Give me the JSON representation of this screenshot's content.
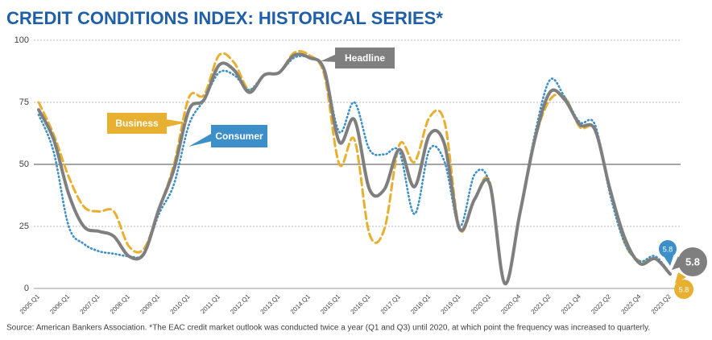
{
  "chart_data": {
    "type": "line",
    "title": "CREDIT CONDITIONS INDEX: HISTORICAL SERIES*",
    "note": "Source: American Bankers Association. *The EAC credit market outlook was conducted twice a year (Q1 and Q3) until 2020, at which point the frequency was increased to quarterly.",
    "categories": [
      "2005.Q1",
      null,
      "2006.Q1",
      null,
      "2007.Q1",
      null,
      "2008.Q1",
      null,
      "2009.Q1",
      null,
      "2010.Q1",
      null,
      "2011.Q1",
      null,
      "2012.Q1",
      null,
      "2013.Q1",
      null,
      "2014.Q1",
      null,
      "2015.Q1",
      null,
      "2016.Q1",
      null,
      "2017.Q1",
      null,
      "2018.Q1",
      null,
      "2019.Q1",
      null,
      "2020.Q1",
      null,
      "2020.Q4",
      null,
      "2021.Q2",
      null,
      "2021.Q4",
      null,
      "2022.Q2",
      null,
      "2022.Q4",
      null,
      "2023.Q2"
    ],
    "series": [
      {
        "name": "Headline",
        "color": "#7f7f7f",
        "style": "solid",
        "values": [
          72,
          60,
          38,
          25,
          23,
          21,
          13,
          14,
          32,
          48,
          72,
          76,
          90,
          88,
          79,
          86,
          87,
          94,
          93,
          88,
          59,
          68,
          40,
          40,
          56,
          41,
          62,
          58,
          24,
          36,
          42,
          2,
          30,
          60,
          79,
          76,
          66,
          64,
          40,
          20,
          10,
          12,
          5.8
        ]
      },
      {
        "name": "Business",
        "color": "#e8b030",
        "style": "dashed",
        "values": [
          75,
          62,
          45,
          33,
          31,
          31,
          17,
          16,
          32,
          50,
          77,
          78,
          94,
          91,
          80,
          86,
          87,
          95,
          94,
          86,
          50,
          60,
          22,
          24,
          58,
          51,
          69,
          67,
          24,
          36,
          43,
          2,
          30,
          60,
          76,
          77,
          65,
          64,
          40,
          18,
          11,
          12,
          5.8
        ]
      },
      {
        "name": "Consumer",
        "color": "#3d8fc9",
        "style": "dotted",
        "values": [
          70,
          55,
          25,
          18,
          15,
          14,
          13,
          14,
          30,
          42,
          66,
          76,
          87,
          86,
          80,
          86,
          87,
          93,
          93,
          88,
          63,
          75,
          56,
          54,
          55,
          30,
          56,
          51,
          25,
          46,
          42,
          2,
          30,
          62,
          84,
          77,
          67,
          66,
          38,
          18,
          11,
          13,
          5.8
        ]
      }
    ],
    "ylim": [
      0,
      100
    ],
    "yticks": [
      0,
      25,
      50,
      75,
      100
    ],
    "reference_line": 50,
    "grid": true
  }
}
